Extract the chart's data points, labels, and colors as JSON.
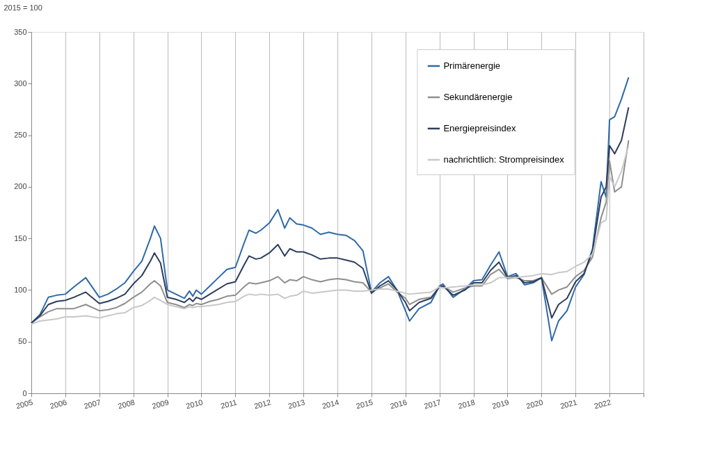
{
  "chart_data": {
    "type": "line",
    "ylabel": "2015 = 100",
    "x": [
      2005.0,
      2005.25,
      2005.5,
      2005.75,
      2006.0,
      2006.25,
      2006.6,
      2007.0,
      2007.25,
      2007.5,
      2007.75,
      2008.0,
      2008.25,
      2008.5,
      2008.62,
      2008.8,
      2009.0,
      2009.25,
      2009.5,
      2009.65,
      2009.75,
      2009.85,
      2010.0,
      2010.25,
      2010.5,
      2010.75,
      2011.0,
      2011.25,
      2011.4,
      2011.6,
      2011.75,
      2012.0,
      2012.25,
      2012.45,
      2012.6,
      2012.8,
      2013.0,
      2013.25,
      2013.5,
      2013.75,
      2014.0,
      2014.25,
      2014.5,
      2014.75,
      2015.0,
      2015.25,
      2015.5,
      2015.75,
      2016.0,
      2016.12,
      2016.4,
      2016.75,
      2017.0,
      2017.1,
      2017.4,
      2017.75,
      2018.0,
      2018.25,
      2018.5,
      2018.75,
      2019.0,
      2019.25,
      2019.5,
      2019.75,
      2020.0,
      2020.3,
      2020.5,
      2020.75,
      2021.0,
      2021.25,
      2021.5,
      2021.75,
      2021.9,
      2022.0,
      2022.15,
      2022.35,
      2022.56
    ],
    "series": [
      {
        "name": "Primärenergie",
        "color": "#2f6aa8",
        "values": [
          68,
          76,
          93,
          95,
          96,
          103,
          112,
          93,
          96,
          101,
          107,
          118,
          128,
          150,
          162,
          150,
          100,
          96,
          92,
          99,
          94,
          100,
          96,
          104,
          112,
          120,
          122,
          145,
          158,
          155,
          158,
          165,
          178,
          160,
          170,
          164,
          163,
          160,
          154,
          156,
          154,
          153,
          148,
          138,
          98,
          107,
          113,
          100,
          80,
          70,
          82,
          88,
          104,
          106,
          93,
          101,
          109,
          110,
          124,
          137,
          113,
          116,
          105,
          107,
          112,
          51,
          70,
          80,
          103,
          115,
          140,
          205,
          190,
          265,
          268,
          285,
          306
        ]
      },
      {
        "name": "Sekundärenergie",
        "color": "#8e8e8e",
        "values": [
          68,
          74,
          79,
          82,
          82,
          82,
          86,
          80,
          81,
          83,
          87,
          93,
          98,
          106,
          109,
          104,
          88,
          86,
          83,
          86,
          85,
          87,
          86,
          89,
          91,
          94,
          95,
          103,
          107,
          106,
          107,
          109,
          113,
          107,
          110,
          109,
          113,
          110,
          108,
          110,
          111,
          110,
          108,
          107,
          98,
          102,
          106,
          98,
          92,
          86,
          91,
          93,
          103,
          104,
          98,
          102,
          104,
          104,
          115,
          120,
          111,
          112,
          109,
          109,
          112,
          96,
          100,
          103,
          113,
          119,
          132,
          170,
          185,
          225,
          195,
          200,
          245
        ]
      },
      {
        "name": "Energiepreisindex",
        "color": "#2c3d5c",
        "values": [
          68,
          75,
          86,
          89,
          90,
          93,
          98,
          87,
          89,
          92,
          96,
          106,
          114,
          128,
          136,
          126,
          93,
          91,
          88,
          92,
          89,
          93,
          91,
          96,
          101,
          106,
          108,
          124,
          133,
          130,
          131,
          136,
          144,
          133,
          140,
          137,
          137,
          134,
          130,
          131,
          131,
          129,
          127,
          121,
          97,
          104,
          109,
          100,
          88,
          80,
          88,
          92,
          103,
          104,
          95,
          100,
          107,
          107,
          119,
          127,
          112,
          114,
          107,
          108,
          112,
          73,
          86,
          92,
          108,
          116,
          138,
          190,
          200,
          240,
          232,
          245,
          277
        ]
      },
      {
        "name": "nachrichtlich: Strompreisindex",
        "color": "#c8c8c8",
        "values": [
          67,
          70,
          71,
          72,
          74,
          74,
          75,
          73,
          75,
          77,
          78,
          83,
          85,
          90,
          93,
          90,
          86,
          84,
          82,
          84,
          83,
          84,
          84,
          85,
          86,
          88,
          89,
          94,
          96,
          95,
          96,
          95,
          96,
          92,
          94,
          95,
          99,
          97,
          98,
          99,
          100,
          100,
          99,
          99,
          100,
          101,
          101,
          99,
          97,
          96,
          97,
          98,
          103,
          102,
          103,
          104,
          105,
          105,
          107,
          112,
          112,
          112,
          113,
          114,
          116,
          115,
          117,
          118,
          123,
          127,
          135,
          165,
          168,
          210,
          200,
          215,
          240
        ]
      }
    ],
    "xlim": [
      2005,
      2023
    ],
    "xticks": [
      2005,
      2006,
      2007,
      2008,
      2009,
      2010,
      2011,
      2012,
      2013,
      2014,
      2015,
      2016,
      2017,
      2018,
      2019,
      2020,
      2021,
      2022,
      {
        "value": 2023,
        "label": null
      }
    ],
    "ylim": [
      0,
      350
    ],
    "yticks": [
      0,
      50,
      100,
      150,
      200,
      250,
      300,
      350
    ],
    "grid": "x",
    "legend": "top right",
    "line_style": "solid"
  }
}
